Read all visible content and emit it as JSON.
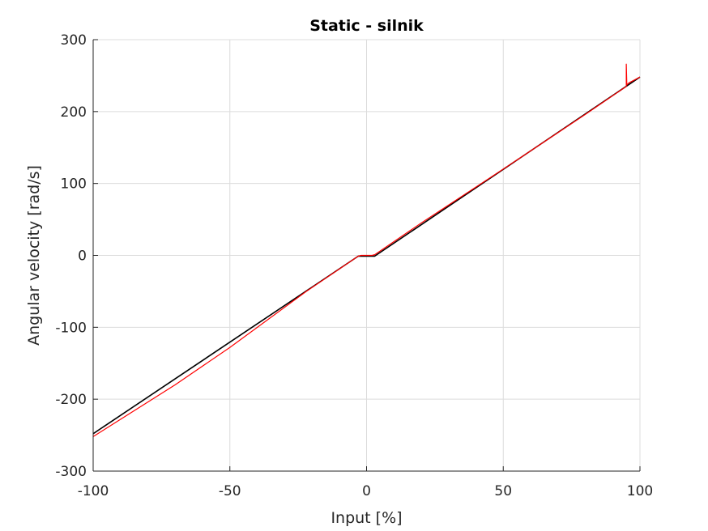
{
  "chart_data": {
    "type": "line",
    "title": "Static - silnik",
    "xlabel": "Input [%]",
    "ylabel": "Angular velocity [rad/s]",
    "xlim": [
      -100,
      100
    ],
    "ylim": [
      -300,
      300
    ],
    "x_ticks": [
      -100,
      -50,
      0,
      50,
      100
    ],
    "y_ticks": [
      -300,
      -200,
      -100,
      0,
      100,
      200,
      300
    ],
    "x_tick_labels": [
      "-100",
      "-50",
      "0",
      "50",
      "100"
    ],
    "y_tick_labels": [
      "-300",
      "-200",
      "-100",
      "0",
      "100",
      "200",
      "300"
    ],
    "grid": true,
    "legend": "none",
    "series": [
      {
        "color": "#000000",
        "x": [
          -100,
          -3,
          3,
          100
        ],
        "y": [
          -248,
          -1,
          -1,
          248
        ]
      },
      {
        "color": "#ff0000",
        "x": [
          -100,
          -70,
          -50,
          -22,
          -3,
          -2,
          0,
          2,
          3,
          20,
          50,
          80,
          95,
          95,
          95.2,
          96,
          100
        ],
        "y": [
          -252,
          -180,
          -128,
          -50,
          -1,
          0,
          0,
          0,
          1,
          45,
          120,
          196,
          235,
          266,
          237,
          240,
          248
        ]
      }
    ]
  }
}
